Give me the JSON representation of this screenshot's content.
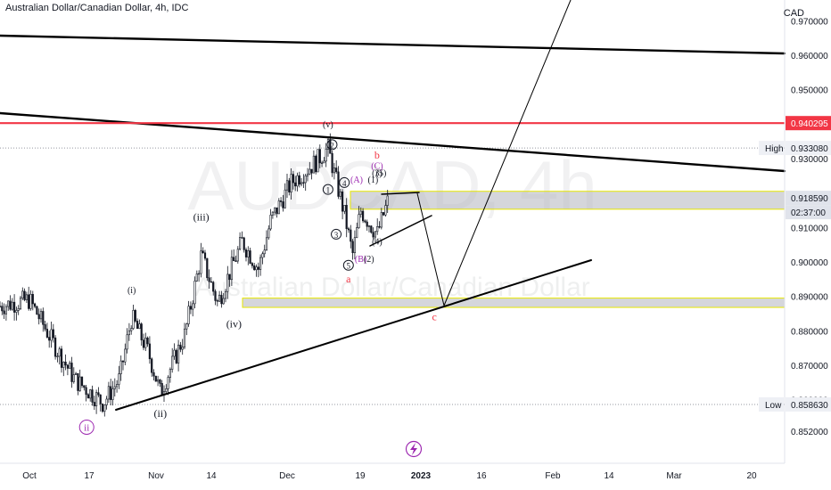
{
  "header": {
    "title": "Australian Dollar/Canadian Dollar, 4h, IDC",
    "currency": "CAD"
  },
  "watermark": {
    "symbol": "AUDCAD, 4h",
    "name": "Australian Dollar/Canadian Dollar"
  },
  "colors": {
    "accent_red": "#f23645",
    "wave_purple": "#9c27b0",
    "zone_fill": "#b2b5be",
    "zone_border": "#e6e600",
    "candle": "#131722",
    "grid": "#e8e8e8"
  },
  "chart_data": {
    "type": "candlestick",
    "title": "Australian Dollar/Canadian Dollar, 4h, IDC",
    "ylabel": "CAD",
    "y_ticks": [
      "0.970000",
      "0.960000",
      "0.950000",
      "0.930000",
      "0.910000",
      "0.900000",
      "0.890000",
      "0.880000",
      "0.870000",
      "0.860000",
      "0.852000"
    ],
    "x_ticks": [
      "Oct",
      "17",
      "Nov",
      "14",
      "Dec",
      "19",
      "2023",
      "16",
      "Feb",
      "14",
      "Mar",
      "20"
    ],
    "price_markers": [
      {
        "label": "",
        "value": "0.940295",
        "style": "red"
      },
      {
        "label": "High",
        "value": "0.933080",
        "style": "plain"
      },
      {
        "label": "",
        "value": "0.918590",
        "style": "dark"
      },
      {
        "label": "",
        "value": "02:37:00",
        "style": "countdown"
      },
      {
        "label": "Low",
        "value": "0.858630",
        "style": "plain"
      }
    ],
    "key_levels": {
      "resistance": 0.940295,
      "high": 0.93308,
      "last": 0.91859,
      "low": 0.85863
    },
    "price_path": [
      {
        "date": "Sep 25",
        "close": 0.887
      },
      {
        "date": "Oct 3",
        "close": 0.889
      },
      {
        "date": "Oct 10",
        "close": 0.874
      },
      {
        "date": "Oct 14",
        "close": 0.866
      },
      {
        "date": "Oct 21",
        "close": 0.859
      },
      {
        "date": "Oct 25",
        "close": 0.866
      },
      {
        "date": "Oct 28",
        "close": 0.884
      },
      {
        "date": "Nov 1",
        "close": 0.874
      },
      {
        "date": "Nov 4",
        "close": 0.862
      },
      {
        "date": "Nov 10",
        "close": 0.879
      },
      {
        "date": "Nov 14",
        "close": 0.902
      },
      {
        "date": "Nov 18",
        "close": 0.888
      },
      {
        "date": "Nov 24",
        "close": 0.906
      },
      {
        "date": "Nov 28",
        "close": 0.898
      },
      {
        "date": "Dec 1",
        "close": 0.912
      },
      {
        "date": "Dec 6",
        "close": 0.923
      },
      {
        "date": "Dec 12",
        "close": 0.929
      },
      {
        "date": "Dec 15",
        "close": 0.933
      },
      {
        "date": "Dec 19",
        "close": 0.914
      },
      {
        "date": "Dec 21",
        "close": 0.902
      },
      {
        "date": "Dec 23",
        "close": 0.915
      },
      {
        "date": "Dec 27",
        "close": 0.908
      },
      {
        "date": "Dec 30",
        "close": 0.919
      }
    ],
    "wave_labels": [
      {
        "text": "ii",
        "style": "circled-purple",
        "date": "Oct 17",
        "price": 0.851
      },
      {
        "text": "(i)",
        "style": "plain",
        "date": "Oct 28",
        "price": 0.891
      },
      {
        "text": "(ii)",
        "style": "plain",
        "date": "Nov 4",
        "price": 0.855
      },
      {
        "text": "(iii)",
        "style": "plain",
        "date": "Nov 14",
        "price": 0.912
      },
      {
        "text": "(iv)",
        "style": "plain",
        "date": "Nov 22",
        "price": 0.881
      },
      {
        "text": "(v)",
        "style": "plain",
        "date": "Dec 15",
        "price": 0.939
      },
      {
        "text": "2",
        "style": "circled",
        "date": "Dec 16",
        "price": 0.933
      },
      {
        "text": "1",
        "style": "circled",
        "date": "Dec 15",
        "price": 0.92
      },
      {
        "text": "4",
        "style": "circled",
        "date": "Dec 19",
        "price": 0.922
      },
      {
        "text": "3",
        "style": "circled",
        "date": "Dec 17",
        "price": 0.907
      },
      {
        "text": "5",
        "style": "circled",
        "date": "Dec 20",
        "price": 0.898
      },
      {
        "text": "a",
        "style": "red",
        "date": "Dec 20",
        "price": 0.894
      },
      {
        "text": "(A)",
        "style": "purple",
        "date": "Dec 22",
        "price": 0.923
      },
      {
        "text": "(B)",
        "style": "purple",
        "date": "Dec 23",
        "price": 0.9
      },
      {
        "text": "(2)",
        "style": "plain",
        "date": "Dec 25",
        "price": 0.9
      },
      {
        "text": "(1)",
        "style": "plain",
        "date": "Dec 26",
        "price": 0.923
      },
      {
        "text": "(3)",
        "style": "plain",
        "date": "Dec 27",
        "price": 0.925
      },
      {
        "text": "(5)",
        "style": "plain",
        "date": "Dec 28",
        "price": 0.925
      },
      {
        "text": "(4)",
        "style": "plain",
        "date": "Dec 27",
        "price": 0.905
      },
      {
        "text": "(C)",
        "style": "purple",
        "date": "Dec 27",
        "price": 0.927
      },
      {
        "text": "b",
        "style": "red",
        "date": "Dec 27",
        "price": 0.93
      },
      {
        "text": "c",
        "style": "red",
        "date": "Jan 10",
        "price": 0.883
      }
    ],
    "zones": [
      {
        "from": 0.9153,
        "to": 0.9205
      },
      {
        "from": 0.8868,
        "to": 0.8895
      }
    ],
    "legend": "none",
    "grid": "horizontal dotted at High/Low levels only"
  }
}
